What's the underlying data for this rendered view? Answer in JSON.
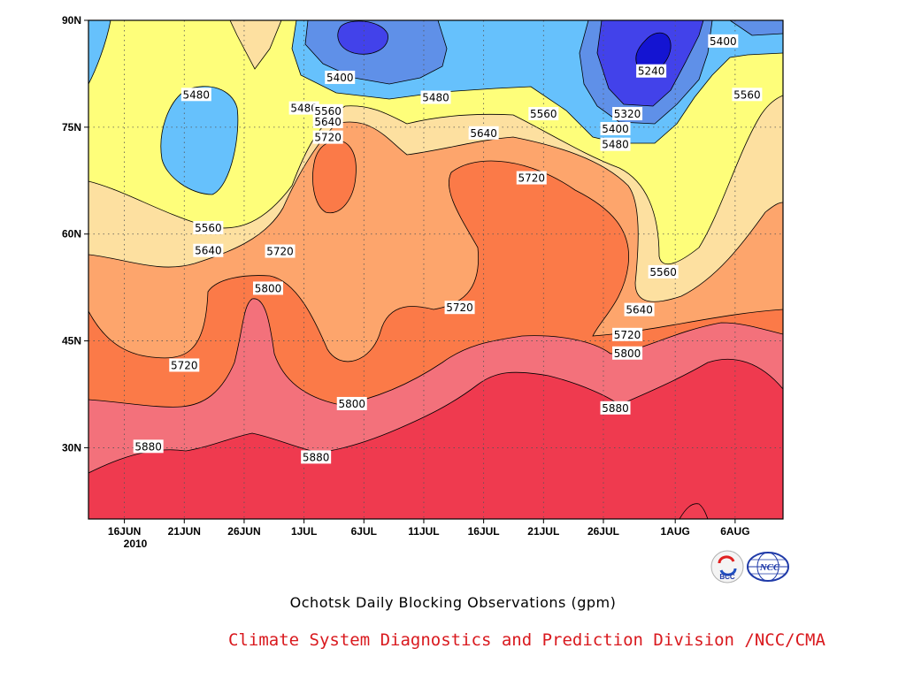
{
  "chart_data": {
    "type": "heatmap",
    "title": "Ochotsk Daily Blocking Observations (gpm)",
    "x_ticks": [
      "16JUN",
      "21JUN",
      "26JUN",
      "1JUL",
      "6JUL",
      "11JUL",
      "16JUL",
      "21JUL",
      "26JUL",
      "1AUG",
      "6AUG"
    ],
    "x_year_label": "2010",
    "x_range": [
      "2010-06-13",
      "2010-08-10"
    ],
    "y_ticks": [
      "30N",
      "45N",
      "60N",
      "75N",
      "90N"
    ],
    "ylim": [
      20,
      90
    ],
    "grid": true,
    "contour_levels": [
      5240,
      5320,
      5400,
      5480,
      5560,
      5640,
      5720,
      5800,
      5880
    ],
    "level_colors": {
      "below_5240": "#1414d2",
      "5240": "#4242ea",
      "5320": "#5f90e8",
      "5400": "#66c1fc",
      "5480": "#fefe7a",
      "5560": "#fde0a0",
      "5640": "#fda56c",
      "5720": "#fb7a48",
      "5800": "#f3717b",
      "5880": "#ef3a4f"
    },
    "contour_labels": [
      {
        "value": "5400",
        "date": "2010-08-05",
        "lat": 87.1
      },
      {
        "value": "5240",
        "date": "2010-07-30",
        "lat": 82.9
      },
      {
        "value": "5400",
        "date": "2010-07-04",
        "lat": 82.0
      },
      {
        "value": "5480",
        "date": "2010-06-22",
        "lat": 79.6
      },
      {
        "value": "5480",
        "date": "2010-07-12",
        "lat": 79.2
      },
      {
        "value": "5560",
        "date": "2010-08-07",
        "lat": 79.6
      },
      {
        "value": "5480",
        "date": "2010-07-01",
        "lat": 77.7
      },
      {
        "value": "5560",
        "date": "2010-07-03",
        "lat": 77.3
      },
      {
        "value": "5560",
        "date": "2010-07-21",
        "lat": 76.9
      },
      {
        "value": "5320",
        "date": "2010-07-28",
        "lat": 76.9
      },
      {
        "value": "5640",
        "date": "2010-07-03",
        "lat": 75.8
      },
      {
        "value": "5400",
        "date": "2010-07-27",
        "lat": 74.8
      },
      {
        "value": "5640",
        "date": "2010-07-16",
        "lat": 74.2
      },
      {
        "value": "5720",
        "date": "2010-07-03",
        "lat": 73.6
      },
      {
        "value": "5480",
        "date": "2010-07-27",
        "lat": 72.6
      },
      {
        "value": "5720",
        "date": "2010-07-20",
        "lat": 67.9
      },
      {
        "value": "5560",
        "date": "2010-06-23",
        "lat": 60.9
      },
      {
        "value": "5640",
        "date": "2010-06-23",
        "lat": 57.7
      },
      {
        "value": "5720",
        "date": "2010-06-29",
        "lat": 57.6
      },
      {
        "value": "5560",
        "date": "2010-07-31",
        "lat": 54.7
      },
      {
        "value": "5800",
        "date": "2010-06-28",
        "lat": 52.4
      },
      {
        "value": "5720",
        "date": "2010-07-14",
        "lat": 49.7
      },
      {
        "value": "5640",
        "date": "2010-07-29",
        "lat": 49.4
      },
      {
        "value": "5720",
        "date": "2010-07-28",
        "lat": 45.9
      },
      {
        "value": "5720",
        "date": "2010-06-21",
        "lat": 41.6
      },
      {
        "value": "5800",
        "date": "2010-07-28",
        "lat": 43.3
      },
      {
        "value": "5800",
        "date": "2010-07-05",
        "lat": 36.2
      },
      {
        "value": "5880",
        "date": "2010-07-27",
        "lat": 35.6
      },
      {
        "value": "5880",
        "date": "2010-06-18",
        "lat": 30.2
      },
      {
        "value": "5880",
        "date": "2010-07-02",
        "lat": 28.7
      }
    ]
  },
  "caption": {
    "title": "Ochotsk Daily Blocking Observations (gpm)",
    "credit": "Climate System Diagnostics and Prediction Division /NCC/CMA"
  },
  "logos": {
    "bcc": {
      "text": "BCC",
      "color": "#1f3aa8"
    },
    "ncc": {
      "text": "NCC",
      "color": "#1f3aa8"
    }
  }
}
